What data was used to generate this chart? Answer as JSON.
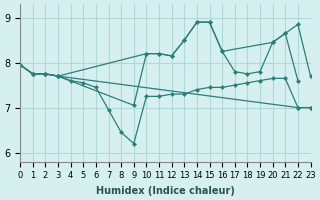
{
  "xlabel": "Humidex (Indice chaleur)",
  "ylabel": "",
  "xlim": [
    0,
    23
  ],
  "ylim": [
    5.8,
    9.3
  ],
  "yticks": [
    6,
    7,
    8,
    9
  ],
  "xticks": [
    0,
    1,
    2,
    3,
    4,
    5,
    6,
    7,
    8,
    9,
    10,
    11,
    12,
    13,
    14,
    15,
    16,
    17,
    18,
    19,
    20,
    21,
    22,
    23
  ],
  "bg_color": "#d6f0ef",
  "grid_color": "#b0d8d8",
  "line_color": "#2d7d78",
  "lines": [
    {
      "x": [
        0,
        1,
        2,
        3,
        10,
        11,
        12,
        13,
        14,
        15,
        16,
        20,
        21,
        22
      ],
      "y": [
        7.95,
        7.75,
        7.75,
        7.7,
        8.2,
        8.2,
        8.15,
        8.5,
        8.9,
        8.9,
        8.25,
        8.45,
        8.65,
        7.6
      ]
    },
    {
      "x": [
        0,
        1,
        2,
        3,
        9,
        10,
        11,
        12,
        13,
        14,
        15,
        16,
        17,
        18,
        19,
        20,
        21,
        22,
        23
      ],
      "y": [
        7.95,
        7.75,
        7.75,
        7.7,
        7.05,
        8.2,
        8.2,
        8.15,
        8.5,
        8.9,
        8.9,
        8.25,
        7.8,
        7.75,
        7.8,
        8.45,
        8.65,
        8.85,
        7.7
      ]
    },
    {
      "x": [
        0,
        1,
        2,
        3,
        4,
        5,
        6,
        7,
        8,
        9,
        10,
        11,
        12,
        13,
        14,
        15,
        16,
        17,
        18,
        19,
        20,
        21,
        22,
        23
      ],
      "y": [
        7.95,
        7.75,
        7.75,
        7.7,
        7.6,
        7.55,
        7.45,
        6.95,
        6.45,
        6.2,
        7.25,
        7.25,
        7.3,
        7.3,
        7.4,
        7.45,
        7.45,
        7.5,
        7.55,
        7.6,
        7.65,
        7.65,
        7.0,
        7.0
      ]
    },
    {
      "x": [
        0,
        1,
        2,
        3,
        22,
        23
      ],
      "y": [
        7.95,
        7.75,
        7.75,
        7.7,
        7.0,
        7.0
      ]
    }
  ]
}
